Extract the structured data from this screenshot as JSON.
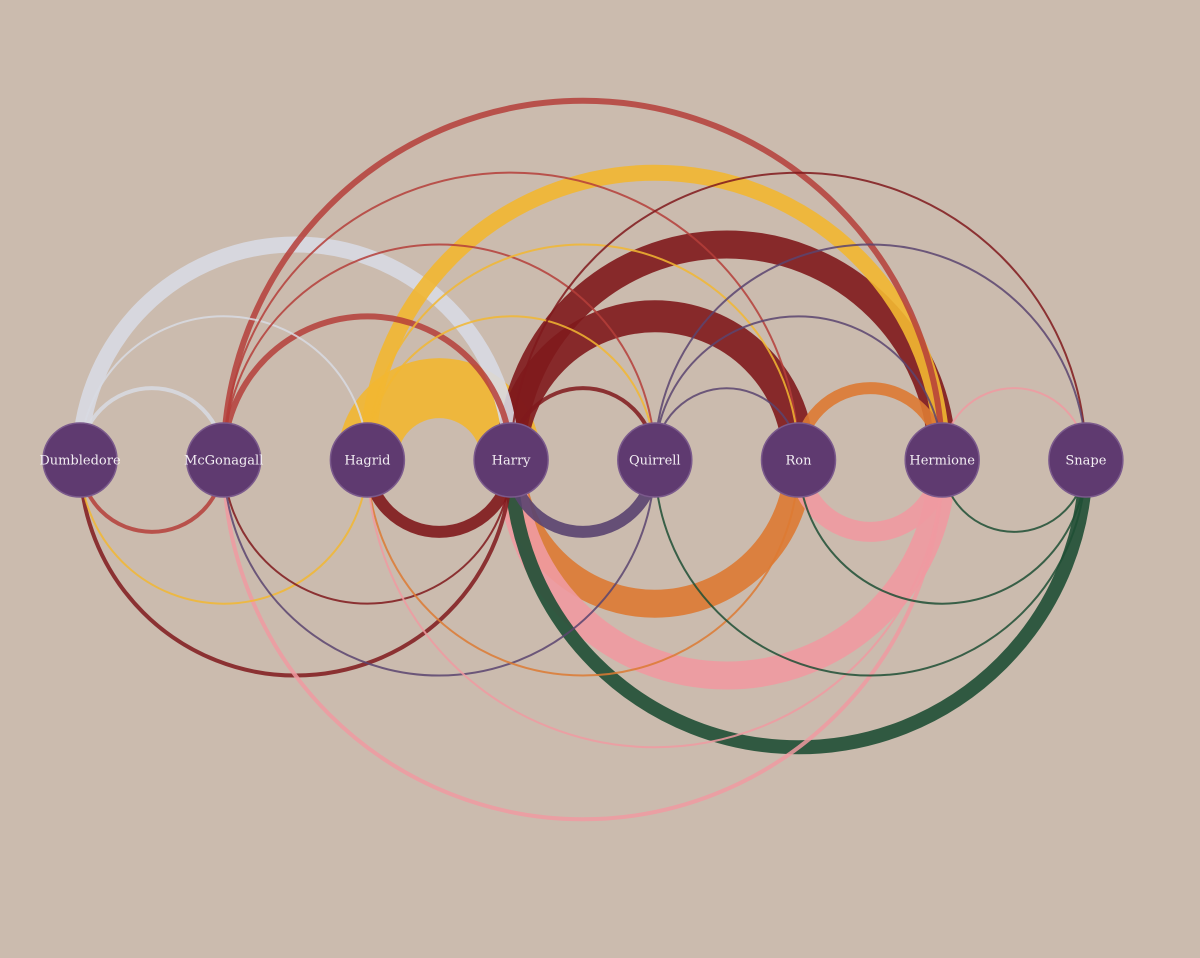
{
  "nodes": [
    {
      "id": "dumbledore",
      "label": "Dumbledore"
    },
    {
      "id": "mcgonagall",
      "label": "McGonagall"
    },
    {
      "id": "hagrid",
      "label": "Hagrid"
    },
    {
      "id": "harry",
      "label": "Harry"
    },
    {
      "id": "quirrell",
      "label": "Quirrell"
    },
    {
      "id": "ron",
      "label": "Ron"
    },
    {
      "id": "hermione",
      "label": "Hermione"
    },
    {
      "id": "snape",
      "label": "Snape"
    }
  ],
  "colors": {
    "background": "#cbbbae",
    "node_fill": "#5f3a70",
    "dumbledore": "#d8dae3",
    "mcgonagall": "#b53e3a",
    "hagrid": "#f2b731",
    "harry": "#80191c",
    "quirrell": "#5a4470",
    "ron": "#dd7a33",
    "hermione": "#f09aa1",
    "snape": "#1f4f35"
  },
  "links": [
    {
      "source": 0,
      "target": 3,
      "side": "top",
      "color": "dumbledore",
      "weight": 8
    },
    {
      "source": 0,
      "target": 2,
      "side": "top",
      "color": "dumbledore",
      "weight": 1
    },
    {
      "source": 0,
      "target": 1,
      "side": "top",
      "color": "dumbledore",
      "weight": 2
    },
    {
      "source": 0,
      "target": 1,
      "side": "bottom",
      "color": "mcgonagall",
      "weight": 2
    },
    {
      "source": 0,
      "target": 2,
      "side": "bottom",
      "color": "hagrid",
      "weight": 1
    },
    {
      "source": 0,
      "target": 3,
      "side": "bottom",
      "color": "harry",
      "weight": 2
    },
    {
      "source": 1,
      "target": 6,
      "side": "top",
      "color": "mcgonagall",
      "weight": 3
    },
    {
      "source": 1,
      "target": 5,
      "side": "top",
      "color": "mcgonagall",
      "weight": 1
    },
    {
      "source": 1,
      "target": 4,
      "side": "top",
      "color": "mcgonagall",
      "weight": 1
    },
    {
      "source": 1,
      "target": 3,
      "side": "top",
      "color": "mcgonagall",
      "weight": 3
    },
    {
      "source": 1,
      "target": 3,
      "side": "bottom",
      "color": "harry",
      "weight": 1
    },
    {
      "source": 1,
      "target": 4,
      "side": "bottom",
      "color": "quirrell",
      "weight": 1
    },
    {
      "source": 1,
      "target": 6,
      "side": "bottom",
      "color": "hermione",
      "weight": 2
    },
    {
      "source": 2,
      "target": 6,
      "side": "top",
      "color": "hagrid",
      "weight": 8
    },
    {
      "source": 2,
      "target": 5,
      "side": "top",
      "color": "hagrid",
      "weight": 1
    },
    {
      "source": 2,
      "target": 4,
      "side": "top",
      "color": "hagrid",
      "weight": 1
    },
    {
      "source": 2,
      "target": 3,
      "side": "top",
      "color": "hagrid",
      "weight": 30
    },
    {
      "source": 2,
      "target": 3,
      "side": "bottom",
      "color": "harry",
      "weight": 6
    },
    {
      "source": 2,
      "target": 5,
      "side": "bottom",
      "color": "ron",
      "weight": 1
    },
    {
      "source": 2,
      "target": 6,
      "side": "bottom",
      "color": "hermione",
      "weight": 1
    },
    {
      "source": 3,
      "target": 7,
      "side": "top",
      "color": "harry",
      "weight": 1
    },
    {
      "source": 3,
      "target": 6,
      "side": "top",
      "color": "harry",
      "weight": 14
    },
    {
      "source": 3,
      "target": 5,
      "side": "top",
      "color": "harry",
      "weight": 16
    },
    {
      "source": 3,
      "target": 4,
      "side": "top",
      "color": "harry",
      "weight": 2
    },
    {
      "source": 3,
      "target": 4,
      "side": "bottom",
      "color": "quirrell",
      "weight": 6
    },
    {
      "source": 3,
      "target": 5,
      "side": "bottom",
      "color": "ron",
      "weight": 14
    },
    {
      "source": 3,
      "target": 6,
      "side": "bottom",
      "color": "hermione",
      "weight": 14
    },
    {
      "source": 3,
      "target": 7,
      "side": "bottom",
      "color": "snape",
      "weight": 7
    },
    {
      "source": 4,
      "target": 7,
      "side": "top",
      "color": "quirrell",
      "weight": 1
    },
    {
      "source": 4,
      "target": 6,
      "side": "top",
      "color": "quirrell",
      "weight": 1
    },
    {
      "source": 4,
      "target": 5,
      "side": "top",
      "color": "quirrell",
      "weight": 1
    },
    {
      "source": 4,
      "target": 7,
      "side": "bottom",
      "color": "snape",
      "weight": 1
    },
    {
      "source": 5,
      "target": 6,
      "side": "top",
      "color": "ron",
      "weight": 6
    },
    {
      "source": 5,
      "target": 6,
      "side": "bottom",
      "color": "hermione",
      "weight": 10
    },
    {
      "source": 5,
      "target": 7,
      "side": "bottom",
      "color": "snape",
      "weight": 1
    },
    {
      "source": 6,
      "target": 7,
      "side": "top",
      "color": "hermione",
      "weight": 1
    },
    {
      "source": 6,
      "target": 7,
      "side": "bottom",
      "color": "snape",
      "weight": 1
    }
  ]
}
